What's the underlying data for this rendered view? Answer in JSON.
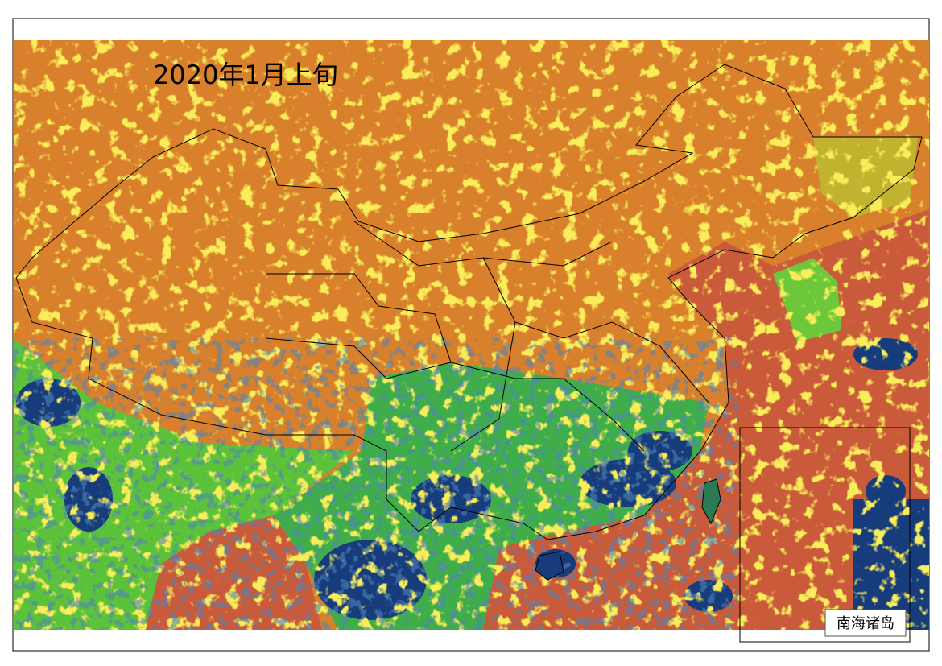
{
  "title": "2020年1月上旬",
  "inset": {
    "label": "南海诸岛"
  }
}
